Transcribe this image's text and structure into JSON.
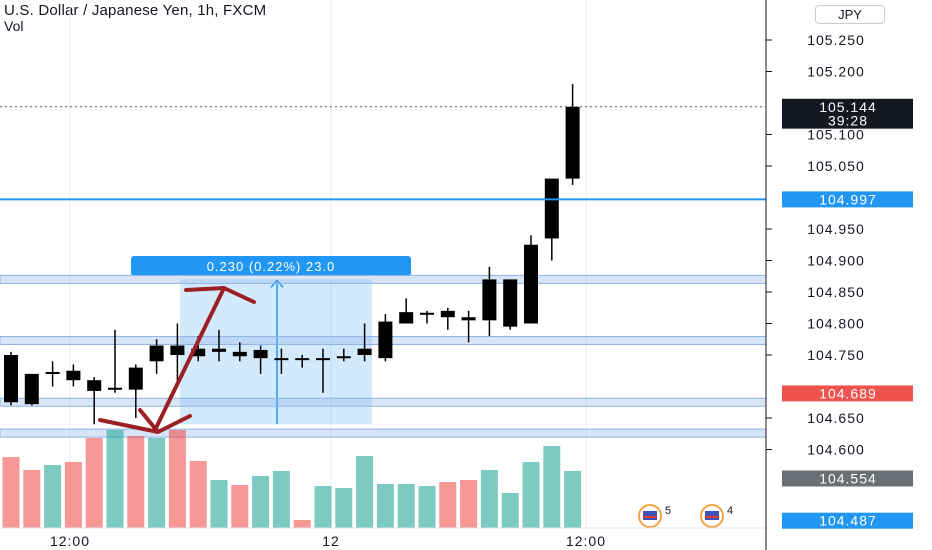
{
  "header": {
    "symbol_title": "U.S. Dollar / Japanese Yen, 1h, FXCM",
    "volume_label": "Vol",
    "currency": "JPY"
  },
  "chart_data": {
    "type": "candlestick",
    "y_ticks": [
      "105.250",
      "105.200",
      "105.100",
      "105.050",
      "104.950",
      "104.900",
      "104.850",
      "104.800",
      "104.750",
      "104.650",
      "104.600"
    ],
    "x_ticks": [
      "12:00",
      "12",
      "12:00"
    ],
    "ylim": [
      104.47,
      105.3
    ],
    "candles": [
      {
        "o": 104.75,
        "h": 104.755,
        "l": 104.67,
        "c": 104.675,
        "v": 0.71
      },
      {
        "o": 104.72,
        "h": 104.72,
        "l": 104.67,
        "c": 104.672,
        "v": 0.58
      },
      {
        "o": 104.72,
        "h": 104.74,
        "l": 104.7,
        "c": 104.723,
        "v": 0.63
      },
      {
        "o": 104.725,
        "h": 104.735,
        "l": 104.7,
        "c": 104.71,
        "v": 0.66
      },
      {
        "o": 104.71,
        "h": 104.715,
        "l": 104.64,
        "c": 104.693,
        "v": 0.9
      },
      {
        "o": 104.695,
        "h": 104.79,
        "l": 104.69,
        "c": 104.698,
        "v": 0.98
      },
      {
        "o": 104.73,
        "h": 104.735,
        "l": 104.65,
        "c": 104.695,
        "v": 0.92
      },
      {
        "o": 104.74,
        "h": 104.775,
        "l": 104.72,
        "c": 104.765,
        "v": 0.9
      },
      {
        "o": 104.765,
        "h": 104.8,
        "l": 104.7,
        "c": 104.75,
        "v": 0.98
      },
      {
        "o": 104.76,
        "h": 104.78,
        "l": 104.74,
        "c": 104.748,
        "v": 0.67
      },
      {
        "o": 104.755,
        "h": 104.79,
        "l": 104.74,
        "c": 104.76,
        "v": 0.48
      },
      {
        "o": 104.755,
        "h": 104.77,
        "l": 104.74,
        "c": 104.748,
        "v": 0.43
      },
      {
        "o": 104.745,
        "h": 104.765,
        "l": 104.72,
        "c": 104.758,
        "v": 0.52
      },
      {
        "o": 104.745,
        "h": 104.76,
        "l": 104.72,
        "c": 104.745,
        "v": 0.57
      },
      {
        "o": 104.745,
        "h": 104.75,
        "l": 104.73,
        "c": 104.744,
        "v": 0.08
      },
      {
        "o": 104.745,
        "h": 104.76,
        "l": 104.69,
        "c": 104.745,
        "v": 0.42
      },
      {
        "o": 104.745,
        "h": 104.76,
        "l": 104.74,
        "c": 104.748,
        "v": 0.4
      },
      {
        "o": 104.75,
        "h": 104.8,
        "l": 104.74,
        "c": 104.76,
        "v": 0.72
      },
      {
        "o": 104.745,
        "h": 104.815,
        "l": 104.74,
        "c": 104.803,
        "v": 0.44
      },
      {
        "o": 104.8,
        "h": 104.84,
        "l": 104.8,
        "c": 104.818,
        "v": 0.44
      },
      {
        "o": 104.815,
        "h": 104.82,
        "l": 104.8,
        "c": 104.817,
        "v": 0.42
      },
      {
        "o": 104.82,
        "h": 104.825,
        "l": 104.79,
        "c": 104.81,
        "v": 0.46
      },
      {
        "o": 104.81,
        "h": 104.82,
        "l": 104.77,
        "c": 104.805,
        "v": 0.48
      },
      {
        "o": 104.805,
        "h": 104.89,
        "l": 104.78,
        "c": 104.87,
        "v": 0.58
      },
      {
        "o": 104.795,
        "h": 104.87,
        "l": 104.79,
        "c": 104.87,
        "v": 0.35
      },
      {
        "o": 104.8,
        "h": 104.94,
        "l": 104.8,
        "c": 104.925,
        "v": 0.66
      },
      {
        "o": 104.935,
        "h": 105.03,
        "l": 104.9,
        "c": 105.03,
        "v": 0.82
      },
      {
        "o": 105.03,
        "h": 105.18,
        "l": 105.02,
        "c": 105.144,
        "v": 0.57
      }
    ],
    "colors": {
      "candle": "#000000",
      "vol_up": "#26a69a",
      "vol_down": "#ef5350",
      "hline": "#2196f3",
      "zone": "#90b4e6",
      "measure": "#2196f3",
      "arrow": "#9c1f23",
      "price_badge": "#131722",
      "red_badge": "#ef5350",
      "gray_badge": "#6b6e75"
    },
    "price_labels": [
      {
        "text": "105.144",
        "style": "black",
        "value": 105.144
      },
      {
        "text": "39:28",
        "style": "black",
        "value": 105.122
      },
      {
        "text": "104.997",
        "style": "blue",
        "value": 104.997
      },
      {
        "text": "104.689",
        "style": "red",
        "value": 104.689
      },
      {
        "text": "104.554",
        "style": "gray",
        "value": 104.554
      },
      {
        "text": "104.487",
        "style": "blue",
        "value": 104.487
      }
    ],
    "hline_value": 104.997,
    "zones": [
      104.87,
      104.773,
      104.675,
      104.626
    ],
    "measure_label": "0.230 (0.22%) 23.0",
    "events": [
      {
        "icon": "flag-icon",
        "count": "5"
      },
      {
        "icon": "flag-icon",
        "count": "4"
      }
    ]
  }
}
